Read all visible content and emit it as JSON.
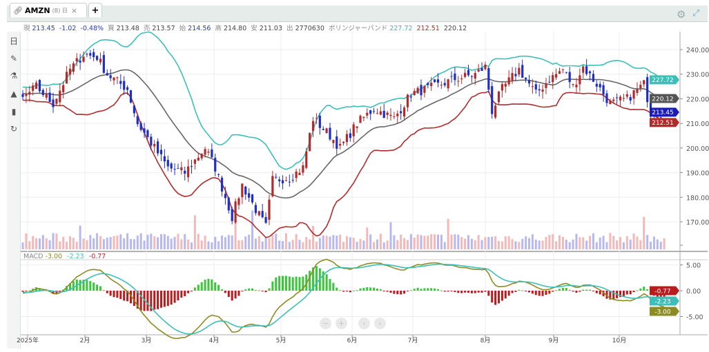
{
  "tabs": [
    {
      "icon": "link-icon",
      "symbol": "AMZN",
      "sub": "(B) 日",
      "close": "×"
    }
  ],
  "add_tab": "+",
  "info": {
    "cur_label": "現",
    "cur": "213.45",
    "chg": "-1.02",
    "pct": "-0.48%",
    "bid_label": "買",
    "bid": "213.48",
    "ask_label": "売",
    "ask": "213.57",
    "open_label": "始",
    "open": "214.56",
    "high_label": "高",
    "high": "214.80",
    "low_label": "安",
    "low": "211.03",
    "vol_label": "出",
    "vol": "2770630",
    "bb_label": "ボリンジャーバンド",
    "bb_upper": "227.72",
    "bb_lower": "212.51",
    "bb_mid": "220.12"
  },
  "macd": {
    "label": "MACD",
    "macd": "-3.00",
    "signal": "-2.23",
    "hist": "-0.77"
  },
  "price_axis": [
    "240.00",
    "230.00",
    "220.00",
    "210.00",
    "200.00",
    "190.00",
    "180.00",
    "170.00"
  ],
  "macd_axis": [
    "5.00",
    "0.00",
    "-5.00"
  ],
  "date_axis": [
    "2025年",
    "2月",
    "3月",
    "4月",
    "5月",
    "6月",
    "7月",
    "8月",
    "9月",
    "10月"
  ],
  "tags": {
    "upper": "227.72",
    "mid": "220.12",
    "last": "213.45",
    "lower": "212.51",
    "macd_hist": "-0.77",
    "macd_signal": "-2.23",
    "macd_line": "-3.00"
  },
  "colors": {
    "up": "#b22a2a",
    "down": "#1f2fc4",
    "upper": "#3bbfb8",
    "lower": "#b22a2a",
    "mid": "#666666",
    "macd": "#8c8c22",
    "signal": "#3bbfb8",
    "hist_pos": "#3cc43c",
    "hist_neg": "#b81c1c"
  },
  "chart_data": {
    "type": "candlestick",
    "close_keyframes": [
      [
        -25,
        224
      ],
      [
        -10,
        222
      ],
      [
        0,
        220
      ],
      [
        4,
        225
      ],
      [
        9,
        218
      ],
      [
        14,
        232
      ],
      [
        18,
        238
      ],
      [
        22,
        237
      ],
      [
        25,
        230
      ],
      [
        31,
        224
      ],
      [
        34,
        210
      ],
      [
        39,
        200
      ],
      [
        43,
        192
      ],
      [
        48,
        190
      ],
      [
        54,
        200
      ],
      [
        57,
        192
      ],
      [
        60,
        180
      ],
      [
        62,
        172
      ],
      [
        65,
        185
      ],
      [
        69,
        175
      ],
      [
        72,
        168
      ],
      [
        74,
        187
      ],
      [
        79,
        188
      ],
      [
        83,
        192
      ],
      [
        86,
        212
      ],
      [
        91,
        205
      ],
      [
        94,
        200
      ],
      [
        99,
        210
      ],
      [
        104,
        216
      ],
      [
        110,
        212
      ],
      [
        115,
        222
      ],
      [
        122,
        225
      ],
      [
        128,
        228
      ],
      [
        134,
        230
      ],
      [
        137,
        233
      ],
      [
        139,
        215
      ],
      [
        142,
        224
      ],
      [
        147,
        232
      ],
      [
        152,
        222
      ],
      [
        156,
        228
      ],
      [
        160,
        232
      ],
      [
        163,
        225
      ],
      [
        166,
        233
      ],
      [
        170,
        226
      ],
      [
        174,
        218
      ],
      [
        179,
        220
      ],
      [
        184,
        226
      ],
      [
        186,
        215
      ],
      [
        190,
        213.45
      ]
    ],
    "last": 213.45,
    "ylim": [
      166,
      246
    ],
    "bollinger": {
      "period": 20,
      "std": 2
    },
    "macd_params": [
      12,
      26,
      9
    ]
  }
}
